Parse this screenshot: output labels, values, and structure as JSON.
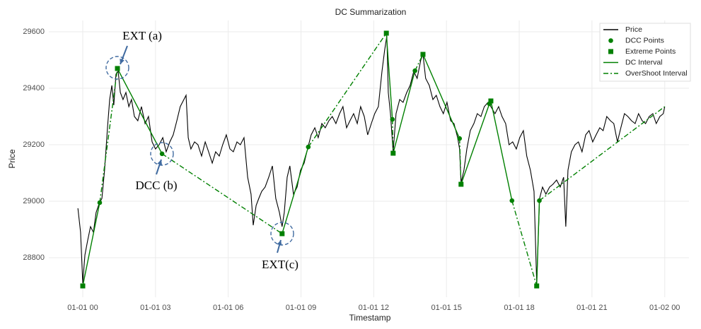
{
  "chart_data": {
    "type": "line",
    "title": "DC Summarization",
    "x_label": "Timestamp",
    "y_label": "Price",
    "xlim": [
      -1.4,
      25.0
    ],
    "ylim": [
      28660,
      29640
    ],
    "xticks": [
      {
        "value": 0,
        "label": "01-01 00"
      },
      {
        "value": 3,
        "label": "01-01 03"
      },
      {
        "value": 6,
        "label": "01-01 06"
      },
      {
        "value": 9,
        "label": "01-01 09"
      },
      {
        "value": 12,
        "label": "01-01 12"
      },
      {
        "value": 15,
        "label": "01-01 15"
      },
      {
        "value": 18,
        "label": "01-01 18"
      },
      {
        "value": 21,
        "label": "01-01 21"
      },
      {
        "value": 24,
        "label": "01-02 00"
      }
    ],
    "yticks": [
      28800,
      29000,
      29200,
      29400,
      29600
    ],
    "grid": true,
    "legend": "upper right",
    "series": [
      {
        "name": "Price",
        "color": "#000000",
        "linestyle": "solid",
        "x": [
          -0.2,
          -0.09,
          0,
          0.09,
          0.2,
          0.32,
          0.44,
          0.55,
          0.67,
          0.79,
          0.9,
          1.02,
          1.11,
          1.2,
          1.28,
          1.37,
          1.46,
          1.55,
          1.66,
          1.78,
          1.9,
          2.01,
          2.13,
          2.27,
          2.42,
          2.57,
          2.71,
          2.86,
          3.0,
          3.15,
          3.3,
          3.44,
          3.59,
          3.73,
          3.88,
          4.02,
          4.17,
          4.26,
          4.35,
          4.46,
          4.61,
          4.75,
          4.9,
          5.05,
          5.19,
          5.34,
          5.48,
          5.63,
          5.77,
          5.92,
          6.07,
          6.21,
          6.36,
          6.5,
          6.65,
          6.8,
          6.94,
          7.03,
          7.15,
          7.26,
          7.38,
          7.52,
          7.67,
          7.82,
          7.96,
          8.11,
          8.22,
          8.31,
          8.43,
          8.54,
          8.69,
          8.84,
          8.98,
          9.13,
          9.27,
          9.42,
          9.57,
          9.71,
          9.86,
          10.0,
          10.15,
          10.29,
          10.44,
          10.59,
          10.73,
          10.88,
          11.02,
          11.17,
          11.32,
          11.46,
          11.61,
          11.75,
          11.9,
          12.04,
          12.19,
          12.34,
          12.45,
          12.54,
          12.6,
          12.69,
          12.8,
          12.92,
          13.07,
          13.21,
          13.36,
          13.5,
          13.65,
          13.79,
          13.94,
          14.03,
          14.14,
          14.29,
          14.44,
          14.58,
          14.73,
          14.87,
          15.02,
          15.17,
          15.31,
          15.46,
          15.54,
          15.6,
          15.72,
          15.84,
          15.98,
          16.13,
          16.27,
          16.42,
          16.56,
          16.71,
          16.83,
          17.0,
          17.15,
          17.29,
          17.44,
          17.58,
          17.73,
          17.88,
          18.02,
          18.17,
          18.31,
          18.46,
          18.61,
          18.72,
          18.84,
          18.96,
          19.1,
          19.25,
          19.39,
          19.54,
          19.69,
          19.83,
          19.92,
          20.01,
          20.15,
          20.3,
          20.44,
          20.59,
          20.74,
          20.88,
          21.03,
          21.17,
          21.32,
          21.46,
          21.61,
          21.76,
          21.9,
          22.05,
          22.19,
          22.34,
          22.48,
          22.63,
          22.78,
          22.92,
          23.07,
          23.21,
          23.36,
          23.51,
          23.65,
          23.8,
          23.94,
          24.0
        ],
        "values": [
          28975,
          28890,
          28710,
          28810,
          28860,
          28910,
          28890,
          28960,
          28990,
          29010,
          29110,
          29260,
          29360,
          29410,
          29340,
          29450,
          29460,
          29385,
          29360,
          29385,
          29335,
          29360,
          29300,
          29285,
          29335,
          29275,
          29300,
          29210,
          29185,
          29200,
          29225,
          29175,
          29210,
          29235,
          29285,
          29335,
          29360,
          29375,
          29225,
          29185,
          29210,
          29200,
          29160,
          29210,
          29175,
          29135,
          29175,
          29160,
          29200,
          29235,
          29185,
          29175,
          29210,
          29200,
          29225,
          29085,
          29025,
          28915,
          28985,
          29010,
          29035,
          29050,
          29085,
          29125,
          29010,
          28960,
          28910,
          28960,
          29085,
          29125,
          29025,
          29050,
          29110,
          29135,
          29185,
          29235,
          29260,
          29225,
          29275,
          29260,
          29285,
          29300,
          29275,
          29310,
          29335,
          29260,
          29285,
          29310,
          29275,
          29335,
          29300,
          29235,
          29275,
          29310,
          29335,
          29460,
          29535,
          29585,
          29385,
          29310,
          29175,
          29310,
          29360,
          29350,
          29385,
          29410,
          29460,
          29435,
          29500,
          29520,
          29435,
          29410,
          29360,
          29375,
          29335,
          29310,
          29350,
          29285,
          29275,
          29225,
          29185,
          29065,
          29110,
          29185,
          29250,
          29275,
          29310,
          29300,
          29335,
          29350,
          29335,
          29310,
          29335,
          29300,
          29275,
          29200,
          29210,
          29185,
          29225,
          29250,
          29160,
          29110,
          29035,
          28710,
          29010,
          29050,
          29025,
          29050,
          29060,
          29075,
          29050,
          29085,
          28910,
          29110,
          29175,
          29200,
          29210,
          29175,
          29235,
          29250,
          29210,
          29235,
          29260,
          29250,
          29300,
          29285,
          29275,
          29210,
          29260,
          29310,
          29300,
          29285,
          29275,
          29310,
          29285,
          29275,
          29300,
          29310,
          29275,
          29300,
          29310,
          29335
        ]
      },
      {
        "name": "DCC Points",
        "color": "#008000",
        "marker": "circle",
        "x": [
          0.7,
          3.27,
          9.3,
          12.77,
          13.7,
          15.54,
          16.77,
          17.7,
          18.83
        ],
        "values": [
          28995,
          29168,
          29192,
          29290,
          29462,
          29222,
          29345,
          29002,
          29002
        ]
      },
      {
        "name": "Extreme Points",
        "color": "#008000",
        "marker": "square",
        "x": [
          0,
          1.43,
          8.22,
          12.52,
          12.8,
          14.03,
          15.6,
          16.83,
          18.72
        ],
        "values": [
          28700,
          29470,
          28885,
          29595,
          29170,
          29520,
          29060,
          29355,
          28700
        ]
      },
      {
        "name": "DC Interval",
        "color": "#008000",
        "linestyle": "solid",
        "x": [
          0,
          0.7,
          null,
          1.43,
          3.27,
          null,
          8.22,
          9.3,
          null,
          12.52,
          12.77,
          null,
          12.8,
          13.7,
          null,
          14.03,
          15.54,
          null,
          15.6,
          16.77,
          null,
          16.83,
          17.7,
          null,
          18.72,
          18.83
        ],
        "values": [
          28700,
          28995,
          null,
          29470,
          29168,
          null,
          28885,
          29192,
          null,
          29595,
          29290,
          null,
          29170,
          29462,
          null,
          29520,
          29222,
          null,
          29060,
          29345,
          null,
          29355,
          29002,
          null,
          28700,
          29002
        ]
      },
      {
        "name": "OverShoot Interval",
        "color": "#008000",
        "linestyle": "dashdot",
        "x": [
          0.7,
          1.43,
          null,
          3.27,
          8.22,
          null,
          9.3,
          12.52,
          null,
          12.77,
          12.8,
          null,
          13.7,
          14.03,
          null,
          15.54,
          15.6,
          null,
          16.77,
          16.83,
          null,
          17.7,
          18.72,
          null,
          18.83,
          24.0
        ],
        "values": [
          28995,
          29470,
          null,
          29168,
          28885,
          null,
          29192,
          29595,
          null,
          29290,
          29170,
          null,
          29462,
          29520,
          null,
          29222,
          29060,
          null,
          29345,
          29355,
          null,
          29002,
          28700,
          null,
          29002,
          29335
        ]
      }
    ],
    "annotations": [
      "EXT (a)",
      "DCC (b)",
      "EXT(c)"
    ]
  }
}
